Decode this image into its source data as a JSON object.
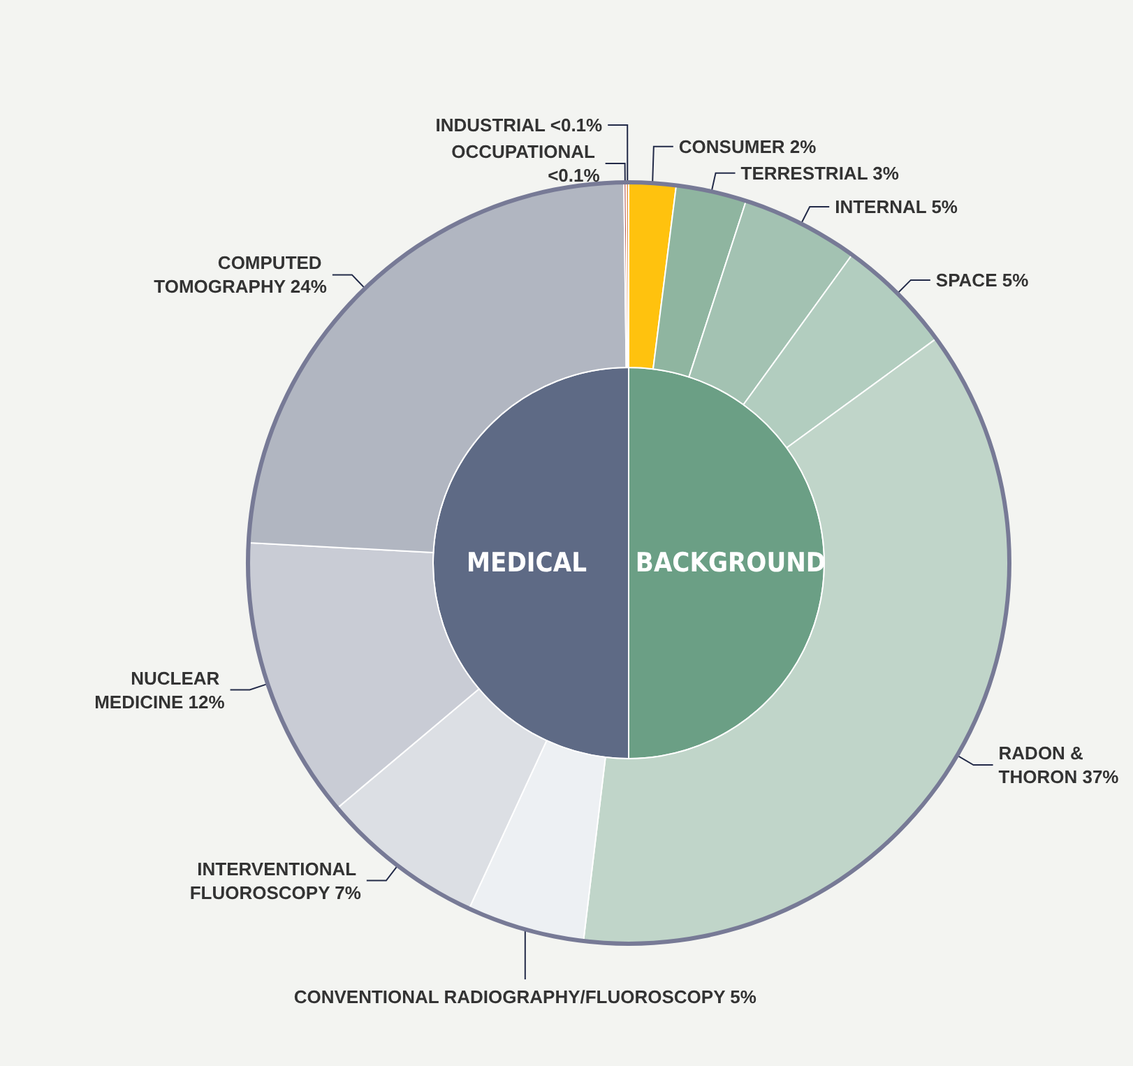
{
  "chart_data": [
    {
      "type": "pie",
      "categories": [
        "BACKGROUND",
        "MEDICAL"
      ],
      "values": [
        50,
        50
      ],
      "colors": [
        "#6b9f85",
        "#5e6a85"
      ],
      "data_labels": false
    },
    {
      "type": "donut",
      "categories": [
        "CONSUMER",
        "TERRESTRIAL",
        "INTERNAL",
        "SPACE",
        "RADON & THORON",
        "CONVENTIONAL RADIOGRAPHY/FLUOROSCOPY",
        "INTERVENTIONAL FLUOROSCOPY",
        "NUCLEAR MEDICINE",
        "COMPUTED TOMOGRAPHY",
        "OCCUPATIONAL",
        "INDUSTRIAL"
      ],
      "values": [
        2,
        3,
        5,
        5,
        37,
        5,
        7,
        12,
        24,
        0.1,
        0.1
      ],
      "value_labels": [
        "2%",
        "3%",
        "5%",
        "5%",
        "37%",
        "5%",
        "7%",
        "12%",
        "24%",
        "<0.1%",
        "<0.1%"
      ],
      "colors": [
        "#ffc20e",
        "#8fb5a0",
        "#a3c2b2",
        "#b2cdbf",
        "#c0d5c9",
        "#edf0f3",
        "#dcdfe4",
        "#c9ccd5",
        "#b1b6c1",
        "#b35a57",
        "#e08a3a"
      ]
    }
  ]
}
